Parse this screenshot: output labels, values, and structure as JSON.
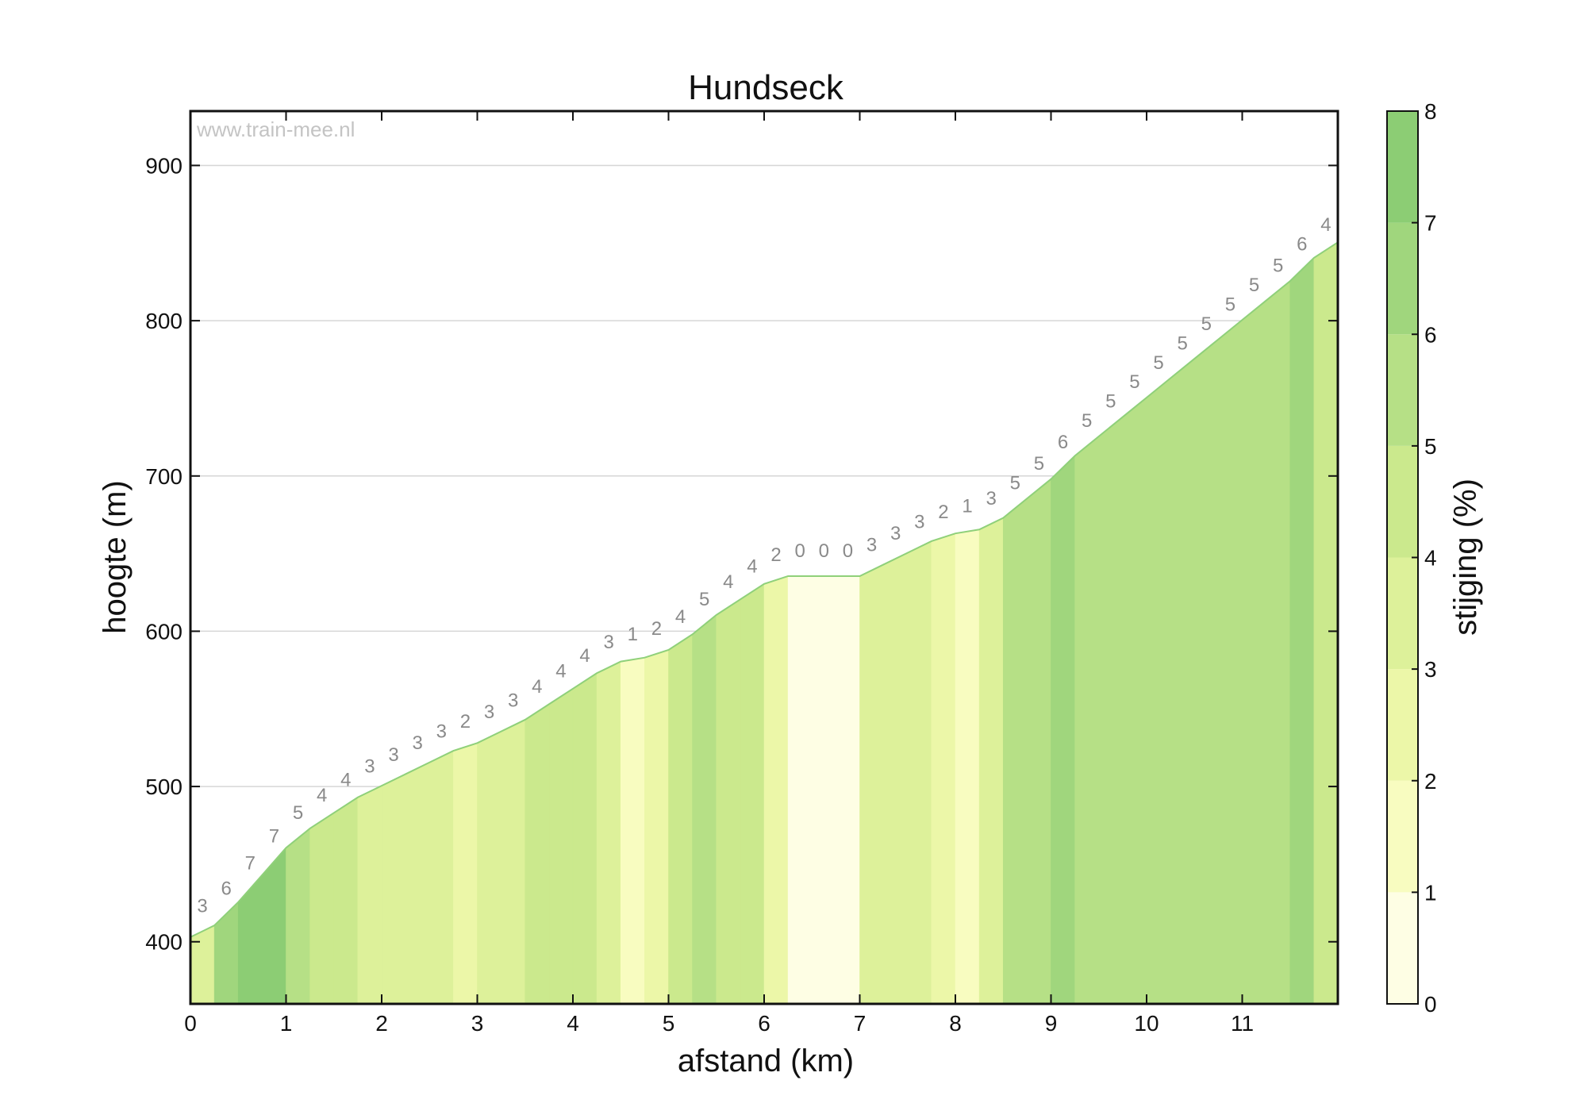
{
  "chart_data": {
    "type": "area",
    "title": "Hundseck",
    "watermark": "www.train-mee.nl",
    "xlabel": "afstand (km)",
    "ylabel": "hoogte (m)",
    "colorbar_label": "stijging (%)",
    "xlim": [
      0,
      12
    ],
    "ylim": [
      360,
      935
    ],
    "xticks": [
      0,
      1,
      2,
      3,
      4,
      5,
      6,
      7,
      8,
      9,
      10,
      11
    ],
    "yticks": [
      400,
      500,
      600,
      700,
      800,
      900
    ],
    "colorbar_ticks": [
      0,
      1,
      2,
      3,
      4,
      5,
      6,
      7,
      8
    ],
    "colorbar_range": [
      0,
      8
    ],
    "grid": "horizontal",
    "segment_length_km": 0.25,
    "start_elevation_m": 403,
    "grades_pct": [
      3,
      6,
      7,
      7,
      5,
      4,
      4,
      3,
      3,
      3,
      3,
      2,
      3,
      3,
      4,
      4,
      4,
      3,
      1,
      2,
      4,
      5,
      4,
      4,
      2,
      0,
      0,
      0,
      3,
      3,
      3,
      2,
      1,
      3,
      5,
      5,
      6,
      5,
      5,
      5,
      5,
      5,
      5,
      5,
      5,
      5,
      6,
      4
    ],
    "color_scale": [
      "#fefee4",
      "#f8fcc0",
      "#ecf7a8",
      "#ddf19a",
      "#cbe98d",
      "#b6e086",
      "#a0d67d",
      "#8ccd74",
      "#72c267"
    ]
  }
}
